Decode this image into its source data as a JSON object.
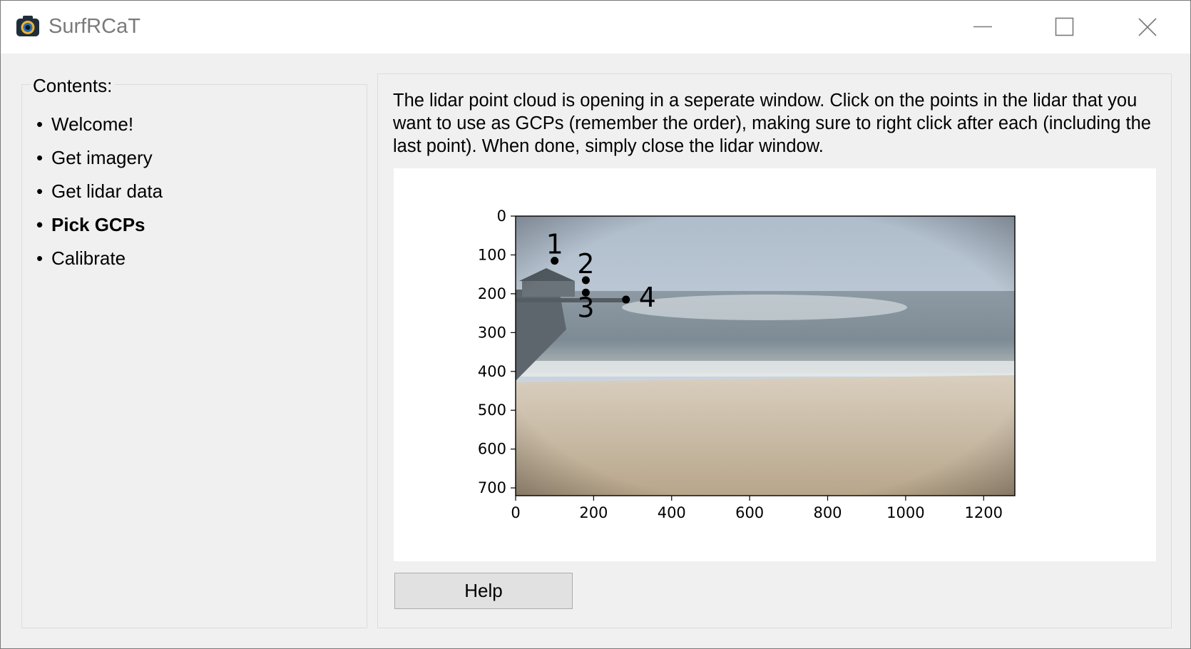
{
  "window": {
    "title": "SurfRCaT",
    "app_icon": "camera-icon",
    "controls": [
      "minimize-icon",
      "maximize-icon",
      "close-icon"
    ]
  },
  "contents": {
    "legend": "Contents:",
    "bullet": "•",
    "items": [
      {
        "label": "Welcome!",
        "active": false
      },
      {
        "label": "Get imagery",
        "active": false
      },
      {
        "label": "Get lidar data",
        "active": false
      },
      {
        "label": "Pick GCPs",
        "active": true
      },
      {
        "label": "Calibrate",
        "active": false
      }
    ]
  },
  "main": {
    "instructions": "The lidar point cloud is opening in a seperate window. Click on the points in the lidar that you want to use as GCPs (remember the order), making sure to right click after each (including the last point). When done, simply close the lidar window.",
    "help_label": "Help"
  },
  "chart_data": {
    "type": "scatter",
    "background": "beach camera image with pier",
    "xlim": [
      0,
      1280
    ],
    "ylim": [
      720,
      0
    ],
    "x_ticks": [
      0,
      200,
      400,
      600,
      800,
      1000,
      1200
    ],
    "y_ticks": [
      0,
      100,
      200,
      300,
      400,
      500,
      600,
      700
    ],
    "points": [
      {
        "label": "1",
        "x": 100,
        "y": 115
      },
      {
        "label": "2",
        "x": 180,
        "y": 165
      },
      {
        "label": "3",
        "x": 180,
        "y": 197
      },
      {
        "label": "4",
        "x": 283,
        "y": 215
      }
    ]
  }
}
